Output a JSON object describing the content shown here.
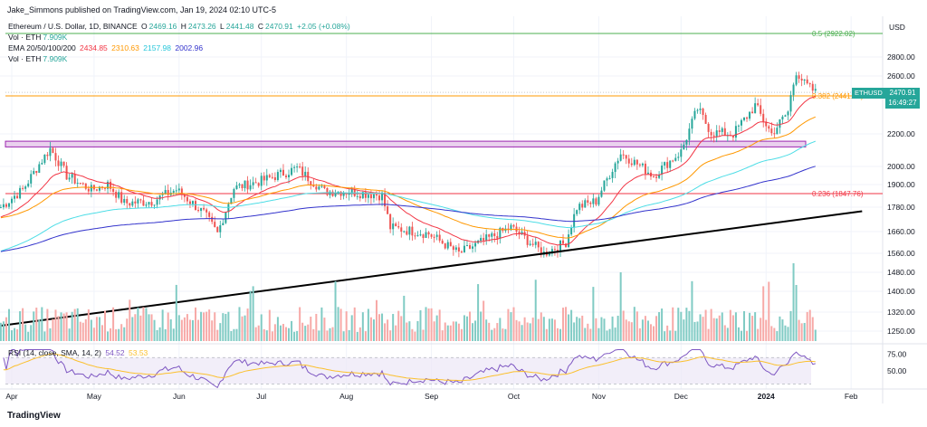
{
  "header": {
    "author": "Jake_Simmons published on TradingView.com, Jan 19, 2024 02:10 UTC-5",
    "symbol_line": "Ethereum / U.S. Dollar, 1D, BINANCE",
    "ohlc": {
      "o_label": "O",
      "o": "2469.16",
      "h_label": "H",
      "h": "2473.26",
      "l_label": "L",
      "l": "2441.48",
      "c_label": "C",
      "c": "2470.91",
      "change": "+2.05 (+0.08%)"
    },
    "vol1_label": "Vol · ETH",
    "vol1": "7.909K",
    "ema_label": "EMA 20/50/100/200",
    "ema_values": [
      "2434.85",
      "2310.63",
      "2157.98",
      "2002.96"
    ],
    "vol2_label": "Vol · ETH",
    "vol2": "7.909K",
    "rsi_label": "RSI (14, close, SMA, 14, 2)",
    "rsi_value": "54.52",
    "rsi_sma": "53.53"
  },
  "currency": "USD",
  "price_tag": {
    "symbol": "ETHUSD",
    "price": "2470.91",
    "countdown": "16:49:27"
  },
  "brand": "TradingView",
  "colors": {
    "up": "#26a69a",
    "down": "#ef5350",
    "ema20": "#f23645",
    "ema50": "#ff9800",
    "ema100": "#4ddde6",
    "ema200": "#3333cc",
    "fib05": "#4caf50",
    "fib0382": "#ff9800",
    "fib0236": "#f23645",
    "rsi": "#7e57c2",
    "rsi_sma": "#fbc02d",
    "zone": "#9c27b0"
  },
  "chart_data": {
    "type": "candlestick",
    "title": "Ethereum / U.S. Dollar, 1D, BINANCE",
    "price_axis_ticks": [
      2800.0,
      2600.0,
      2200.0,
      2000.0,
      1900.0,
      1780.0,
      1660.0,
      1560.0,
      1480.0,
      1400.0,
      1320.0,
      1250.0
    ],
    "price_axis_labels": [
      "2800.00",
      "2600.00",
      "2200.00",
      "2000.00",
      "1900.00",
      "1780.00",
      "1660.00",
      "1560.00",
      "1480.00",
      "1400.00",
      "1320.00",
      "1250.00"
    ],
    "rsi_axis_labels": [
      "75.00",
      "50.00"
    ],
    "x_labels": [
      "Apr",
      "May",
      "Jun",
      "Jul",
      "Aug",
      "Sep",
      "Oct",
      "Nov",
      "Dec",
      "2024",
      "Feb"
    ],
    "fib_levels": [
      {
        "label": "0.5 (2922.02)",
        "price": 2922.02
      },
      {
        "label": "0.382 (2441.88)",
        "price": 2441.88
      },
      {
        "label": "0.236 (1847.76)",
        "price": 1847.76
      }
    ],
    "resistance_zone": [
      2120,
      2155
    ],
    "trendline": [
      {
        "date": "2023-03-28",
        "price": 1270
      },
      {
        "date": "2024-02-05",
        "price": 1760
      }
    ],
    "rsi_levels": [
      70,
      30
    ],
    "price_anchors": [
      [
        "2023-03-28",
        1780
      ],
      [
        "2023-04-05",
        1870
      ],
      [
        "2023-04-15",
        2110
      ],
      [
        "2023-04-21",
        1950
      ],
      [
        "2023-04-30",
        1870
      ],
      [
        "2023-05-06",
        1900
      ],
      [
        "2023-05-12",
        1800
      ],
      [
        "2023-05-22",
        1810
      ],
      [
        "2023-05-31",
        1870
      ],
      [
        "2023-06-10",
        1750
      ],
      [
        "2023-06-15",
        1650
      ],
      [
        "2023-06-21",
        1880
      ],
      [
        "2023-07-01",
        1920
      ],
      [
        "2023-07-14",
        1990
      ],
      [
        "2023-07-24",
        1860
      ],
      [
        "2023-08-01",
        1860
      ],
      [
        "2023-08-14",
        1840
      ],
      [
        "2023-08-17",
        1680
      ],
      [
        "2023-08-31",
        1650
      ],
      [
        "2023-09-11",
        1560
      ],
      [
        "2023-09-30",
        1680
      ],
      [
        "2023-10-12",
        1560
      ],
      [
        "2023-10-20",
        1610
      ],
      [
        "2023-10-24",
        1780
      ],
      [
        "2023-10-31",
        1810
      ],
      [
        "2023-11-09",
        2080
      ],
      [
        "2023-11-21",
        1950
      ],
      [
        "2023-12-01",
        2090
      ],
      [
        "2023-12-07",
        2360
      ],
      [
        "2023-12-12",
        2210
      ],
      [
        "2023-12-20",
        2200
      ],
      [
        "2023-12-28",
        2380
      ],
      [
        "2024-01-03",
        2200
      ],
      [
        "2024-01-09",
        2340
      ],
      [
        "2024-01-12",
        2640
      ],
      [
        "2024-01-15",
        2540
      ],
      [
        "2024-01-19",
        2470
      ]
    ]
  }
}
